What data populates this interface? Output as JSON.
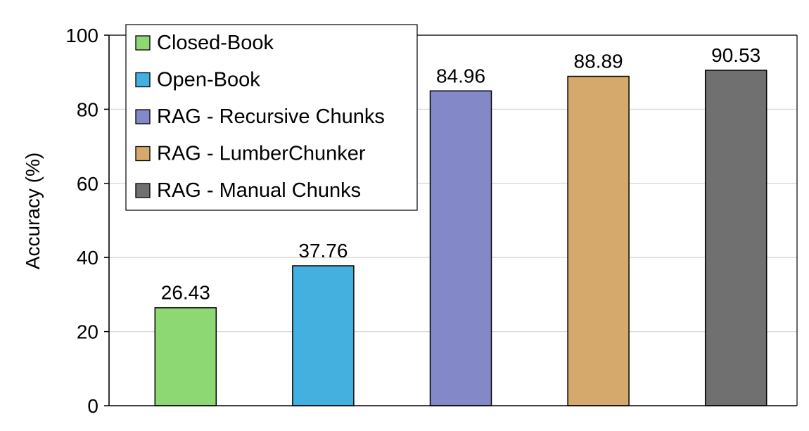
{
  "chart_data": {
    "type": "bar",
    "categories": [
      "Closed-Book",
      "Open-Book",
      "RAG - Recursive Chunks",
      "RAG - LumberChunker",
      "RAG - Manual Chunks"
    ],
    "values": [
      26.43,
      37.76,
      84.96,
      88.89,
      90.53
    ],
    "value_labels": [
      "26.43",
      "37.76",
      "84.96",
      "88.89",
      "90.53"
    ],
    "colors": [
      "#8ed873",
      "#44b0e0",
      "#8389c8",
      "#d5a86c",
      "#707070"
    ],
    "title": "",
    "xlabel": "",
    "ylabel": "Accuracy (%)",
    "ylim": [
      0,
      100
    ],
    "yticks": [
      "0",
      "20",
      "40",
      "60",
      "80",
      "100"
    ],
    "grid": true,
    "legend": {
      "placement": "top-left",
      "entries": [
        "Closed-Book",
        "Open-Book",
        "RAG - Recursive Chunks",
        "RAG - LumberChunker",
        "RAG - Manual Chunks"
      ]
    }
  }
}
